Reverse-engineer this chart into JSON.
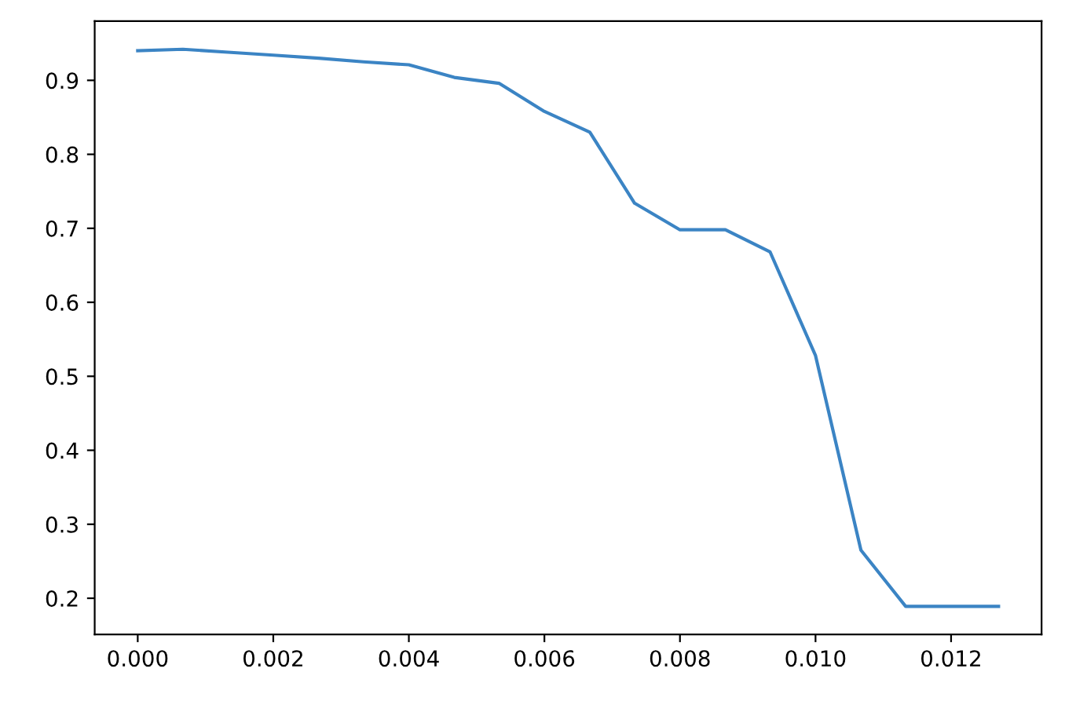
{
  "chart_data": {
    "type": "line",
    "x": [
      0,
      0.000667,
      0.00133,
      0.002,
      0.00267,
      0.00333,
      0.004,
      0.00467,
      0.00533,
      0.006,
      0.00667,
      0.00733,
      0.008,
      0.00867,
      0.00933,
      0.01,
      0.01067,
      0.01133,
      0.012,
      0.0127
    ],
    "series": [
      {
        "color": "#3b84c4",
        "values": [
          0.94,
          0.942,
          0.938,
          0.934,
          0.93,
          0.925,
          0.921,
          0.904,
          0.896,
          0.858,
          0.83,
          0.734,
          0.698,
          0.698,
          0.668,
          0.528,
          0.265,
          0.189,
          0.189,
          0.189
        ]
      }
    ],
    "xlim": [
      -0.000635,
      0.013335
    ],
    "ylim": [
      0.151,
      0.98
    ],
    "xticks": [
      {
        "value": 0,
        "label": "0.000"
      },
      {
        "value": 0.002,
        "label": "0.002"
      },
      {
        "value": 0.004,
        "label": "0.004"
      },
      {
        "value": 0.006,
        "label": "0.006"
      },
      {
        "value": 0.008,
        "label": "0.008"
      },
      {
        "value": 0.01,
        "label": "0.010"
      },
      {
        "value": 0.012,
        "label": "0.012"
      }
    ],
    "yticks": [
      0.2,
      0.3,
      0.4,
      0.5,
      0.6,
      0.7,
      0.8,
      0.9
    ],
    "grid": false,
    "legend": false,
    "marker": "none",
    "line_style": "solid"
  }
}
